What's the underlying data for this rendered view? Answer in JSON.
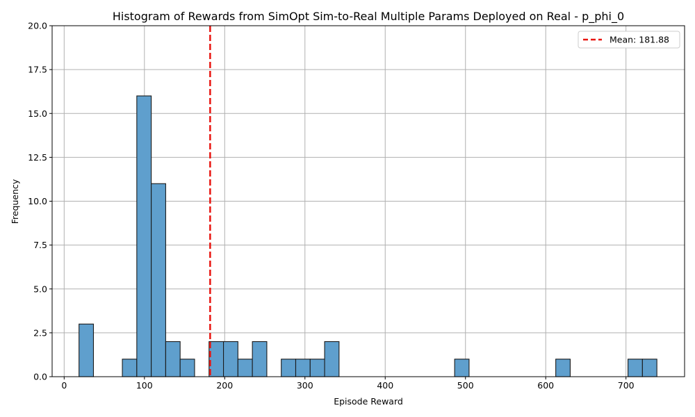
{
  "chart_data": {
    "type": "bar",
    "title": "Histogram of Rewards from SimOpt Sim-to-Real Multiple Params Deployed on Real - p_phi_0",
    "xlabel": "Episode Reward",
    "ylabel": "Frequency",
    "xlim": [
      -15,
      773
    ],
    "ylim": [
      0,
      20
    ],
    "x_ticks": [
      0,
      100,
      200,
      300,
      400,
      500,
      600,
      700
    ],
    "y_ticks": [
      0.0,
      2.5,
      5.0,
      7.5,
      10.0,
      12.5,
      15.0,
      17.5,
      20.0
    ],
    "grid": true,
    "legend_position": "top-right",
    "bin_edges": [
      18.5,
      36.5,
      72.5,
      90.5,
      108.5,
      126.5,
      144.5,
      162.5,
      180.5,
      198.5,
      216.5,
      234.5,
      252.5,
      270.5,
      288.5,
      306.5,
      324.5,
      342.5,
      486.5,
      504.5,
      612.5,
      630.5,
      702.5,
      720.5,
      738.5
    ],
    "bins": [
      {
        "x0": 18.5,
        "x1": 36.5,
        "count": 3
      },
      {
        "x0": 72.5,
        "x1": 90.5,
        "count": 1
      },
      {
        "x0": 90.5,
        "x1": 108.5,
        "count": 16
      },
      {
        "x0": 108.5,
        "x1": 126.5,
        "count": 11
      },
      {
        "x0": 126.5,
        "x1": 144.5,
        "count": 2
      },
      {
        "x0": 144.5,
        "x1": 162.5,
        "count": 1
      },
      {
        "x0": 180.5,
        "x1": 198.5,
        "count": 2
      },
      {
        "x0": 198.5,
        "x1": 216.5,
        "count": 2
      },
      {
        "x0": 216.5,
        "x1": 234.5,
        "count": 1
      },
      {
        "x0": 234.5,
        "x1": 252.5,
        "count": 2
      },
      {
        "x0": 270.5,
        "x1": 288.5,
        "count": 1
      },
      {
        "x0": 288.5,
        "x1": 306.5,
        "count": 1
      },
      {
        "x0": 306.5,
        "x1": 324.5,
        "count": 1
      },
      {
        "x0": 324.5,
        "x1": 342.5,
        "count": 2
      },
      {
        "x0": 486.5,
        "x1": 504.5,
        "count": 1
      },
      {
        "x0": 612.5,
        "x1": 630.5,
        "count": 1
      },
      {
        "x0": 702.5,
        "x1": 720.5,
        "count": 1
      },
      {
        "x0": 720.5,
        "x1": 738.5,
        "count": 1
      }
    ],
    "mean": 181.88,
    "legend": [
      {
        "label": "Mean: 181.88",
        "style": "dashed",
        "color": "#e8140f"
      }
    ],
    "colors": {
      "bar_fill": "#5f9fcd",
      "bar_edge": "#1a1a1a",
      "mean_line": "#e8140f",
      "grid": "#b0b0b0"
    }
  }
}
